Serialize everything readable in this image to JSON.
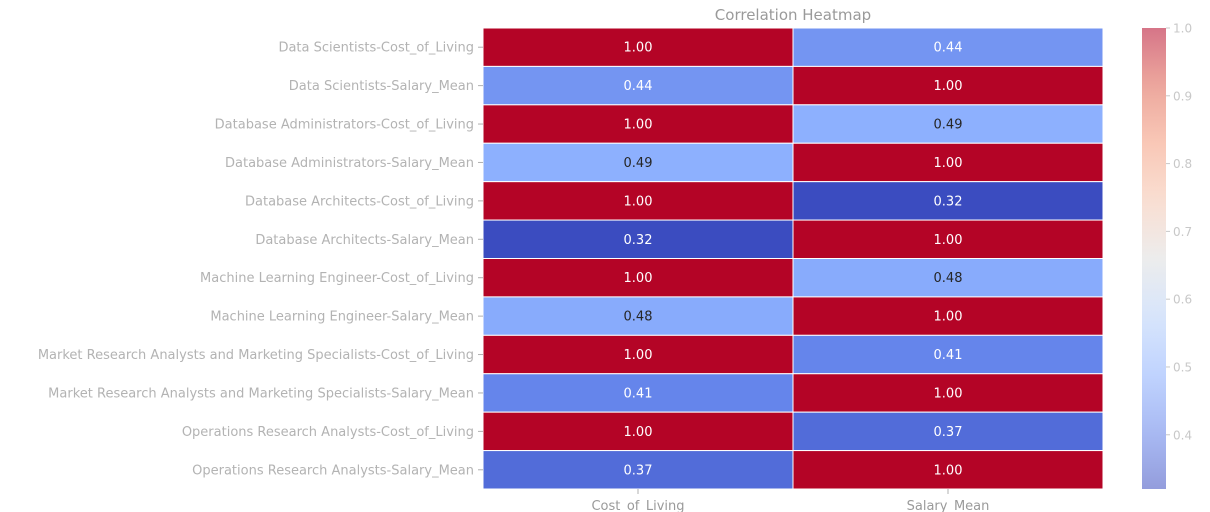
{
  "chart_data": {
    "type": "heatmap",
    "title": "Correlation Heatmap",
    "xlabel": "",
    "ylabel": "",
    "columns": [
      "Cost_of_Living",
      "Salary_Mean"
    ],
    "rows": [
      "Data Scientists-Cost_of_Living",
      "Data Scientists-Salary_Mean",
      "Database Administrators-Cost_of_Living",
      "Database Administrators-Salary_Mean",
      "Database Architects-Cost_of_Living",
      "Database Architects-Salary_Mean",
      "Machine Learning Engineer-Cost_of_Living",
      "Machine Learning Engineer-Salary_Mean",
      "Market Research Analysts and Marketing Specialists-Cost_of_Living",
      "Market Research Analysts and Marketing Specialists-Salary_Mean",
      "Operations Research Analysts-Cost_of_Living",
      "Operations Research Analysts-Salary_Mean"
    ],
    "values": [
      [
        1.0,
        0.44
      ],
      [
        0.44,
        1.0
      ],
      [
        1.0,
        0.49
      ],
      [
        0.49,
        1.0
      ],
      [
        1.0,
        0.32
      ],
      [
        0.32,
        1.0
      ],
      [
        1.0,
        0.48
      ],
      [
        0.48,
        1.0
      ],
      [
        1.0,
        0.41
      ],
      [
        0.41,
        1.0
      ],
      [
        1.0,
        0.37
      ],
      [
        0.37,
        1.0
      ]
    ],
    "colorbar": {
      "min": 0.32,
      "max": 1.0,
      "ticks": [
        0.4,
        0.5,
        0.6,
        0.7,
        0.8,
        0.9,
        1.0
      ],
      "tick_labels": [
        "0.4",
        "0.5",
        "0.6",
        "0.7",
        "0.8",
        "0.9",
        "1.0"
      ],
      "colormap": "coolwarm"
    },
    "annotation_format": "2 decimals"
  }
}
